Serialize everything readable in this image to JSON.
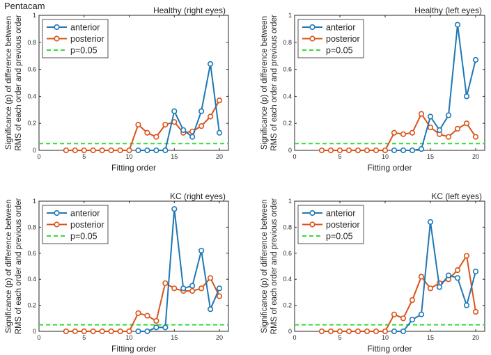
{
  "figure_title": "Pentacam",
  "colors": {
    "anterior": "#1f77b4",
    "posterior": "#d95319",
    "threshold": "#33dd33",
    "axis": "#262626"
  },
  "chart_data": [
    {
      "type": "line",
      "title": "Healthy (right eyes)",
      "xlabel": "Fitting order",
      "ylabel": [
        "Significance (p) of difference between",
        "RMS of each order and previous order"
      ],
      "xlim": [
        0,
        21
      ],
      "ylim": [
        0,
        1
      ],
      "xticks": [
        "0",
        "5",
        "10",
        "15",
        "20"
      ],
      "yticks": [
        "0",
        "0.2",
        "0.4",
        "0.6",
        "0.8",
        "1"
      ],
      "legend_location": "top-left",
      "threshold": {
        "name": "p=0.05",
        "value": 0.05
      },
      "series": [
        {
          "name": "anterior",
          "x": [
            11,
            12,
            13,
            14,
            15,
            16,
            17,
            18,
            19,
            20
          ],
          "values": [
            0,
            0,
            0,
            0,
            0.29,
            0.15,
            0.1,
            0.29,
            0.64,
            0.13
          ]
        },
        {
          "name": "posterior",
          "x": [
            3,
            4,
            5,
            6,
            7,
            8,
            9,
            10,
            11,
            12,
            13,
            14,
            15,
            16,
            17,
            18,
            19,
            20
          ],
          "values": [
            0,
            0,
            0,
            0,
            0,
            0,
            0,
            0,
            0.19,
            0.13,
            0.1,
            0.19,
            0.21,
            0.13,
            0.14,
            0.18,
            0.25,
            0.37
          ]
        }
      ]
    },
    {
      "type": "line",
      "title": "Healthy (left eyes)",
      "xlabel": "Fitting order",
      "ylabel": [
        "Significance (p) of difference between",
        "RMS of each order and previous order"
      ],
      "xlim": [
        0,
        21
      ],
      "ylim": [
        0,
        1
      ],
      "xticks": [
        "0",
        "5",
        "10",
        "15",
        "20"
      ],
      "yticks": [
        "0",
        "0.2",
        "0.4",
        "0.6",
        "0.8",
        "1"
      ],
      "legend_location": "top-left",
      "threshold": {
        "name": "p=0.05",
        "value": 0.05
      },
      "series": [
        {
          "name": "anterior",
          "x": [
            11,
            12,
            13,
            14,
            15,
            16,
            17,
            18,
            19,
            20
          ],
          "values": [
            0,
            0,
            0,
            0.01,
            0.25,
            0.15,
            0.26,
            0.93,
            0.4,
            0.67
          ]
        },
        {
          "name": "posterior",
          "x": [
            3,
            4,
            5,
            6,
            7,
            8,
            9,
            10,
            11,
            12,
            13,
            14,
            15,
            16,
            17,
            18,
            19,
            20
          ],
          "values": [
            0,
            0,
            0,
            0,
            0,
            0,
            0,
            0,
            0.13,
            0.12,
            0.13,
            0.27,
            0.17,
            0.12,
            0.1,
            0.16,
            0.2,
            0.1
          ]
        }
      ]
    },
    {
      "type": "line",
      "title": "KC (right eyes)",
      "xlabel": "Fitting order",
      "ylabel": [
        "Significance (p) of difference between",
        "RMS of each order and previous order"
      ],
      "xlim": [
        0,
        21
      ],
      "ylim": [
        0,
        1
      ],
      "xticks": [
        "0",
        "5",
        "10",
        "15",
        "20"
      ],
      "yticks": [
        "0",
        "0.2",
        "0.4",
        "0.6",
        "0.8",
        "1"
      ],
      "legend_location": "top-left",
      "threshold": {
        "name": "p=0.05",
        "value": 0.05
      },
      "series": [
        {
          "name": "anterior",
          "x": [
            11,
            12,
            13,
            14,
            15,
            16,
            17,
            18,
            19,
            20
          ],
          "values": [
            0,
            0,
            0.03,
            0.03,
            0.94,
            0.33,
            0.35,
            0.62,
            0.17,
            0.33
          ]
        },
        {
          "name": "posterior",
          "x": [
            3,
            4,
            5,
            6,
            7,
            8,
            9,
            10,
            11,
            12,
            13,
            14,
            15,
            16,
            17,
            18,
            19,
            20
          ],
          "values": [
            0,
            0,
            0,
            0,
            0,
            0,
            0,
            0,
            0.14,
            0.12,
            0.08,
            0.37,
            0.33,
            0.31,
            0.31,
            0.33,
            0.41,
            0.27
          ]
        }
      ]
    },
    {
      "type": "line",
      "title": "KC (left eyes)",
      "xlabel": "Fitting order",
      "ylabel": [
        "Significance (p) of difference between",
        "RMS of each order and previous order"
      ],
      "xlim": [
        0,
        21
      ],
      "ylim": [
        0,
        1
      ],
      "xticks": [
        "0",
        "5",
        "10",
        "15",
        "20"
      ],
      "yticks": [
        "0",
        "0.2",
        "0.4",
        "0.6",
        "0.8",
        "1"
      ],
      "legend_location": "top-left",
      "threshold": {
        "name": "p=0.05",
        "value": 0.05
      },
      "series": [
        {
          "name": "anterior",
          "x": [
            11,
            12,
            13,
            14,
            15,
            16,
            17,
            18,
            19,
            20
          ],
          "values": [
            0,
            0,
            0.09,
            0.13,
            0.84,
            0.34,
            0.43,
            0.41,
            0.2,
            0.46
          ]
        },
        {
          "name": "posterior",
          "x": [
            3,
            4,
            5,
            6,
            7,
            8,
            9,
            10,
            11,
            12,
            13,
            14,
            15,
            16,
            17,
            18,
            19,
            20
          ],
          "values": [
            0,
            0,
            0,
            0,
            0,
            0,
            0,
            0,
            0.13,
            0.1,
            0.24,
            0.42,
            0.33,
            0.37,
            0.4,
            0.47,
            0.58,
            0.15
          ]
        }
      ]
    }
  ]
}
